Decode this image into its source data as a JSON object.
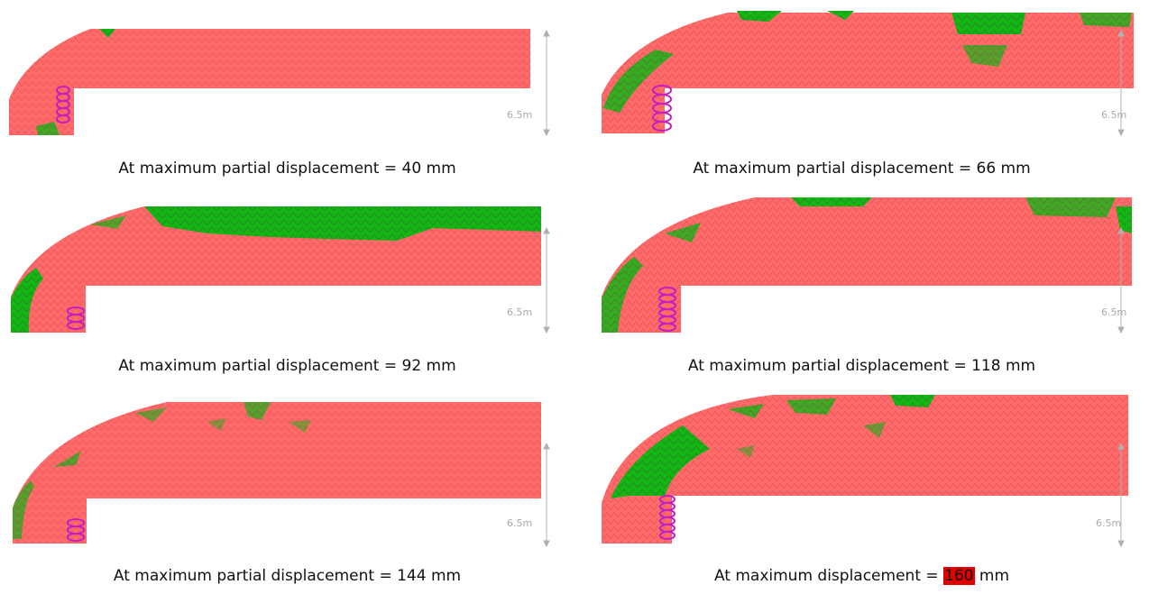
{
  "scale_label": "6.5m",
  "colors": {
    "body": "#ff6b6b",
    "hatch": "#e04848",
    "cracking": "#00b400",
    "bearing": "#c020c0",
    "scale_line": "#b0b0b0",
    "highlight": "#e00000"
  },
  "panels": [
    {
      "caption": "At maximum partial displacement = 40 mm"
    },
    {
      "caption": "At maximum partial displacement = 66 mm"
    },
    {
      "caption": "At maximum partial displacement = 92 mm"
    },
    {
      "caption": "At maximum partial displacement = 118 mm"
    },
    {
      "caption": "At maximum partial displacement = 144 mm"
    },
    {
      "caption_prefix": "At maximum displacement = ",
      "caption_value": "160",
      "caption_suffix": " mm"
    }
  ]
}
